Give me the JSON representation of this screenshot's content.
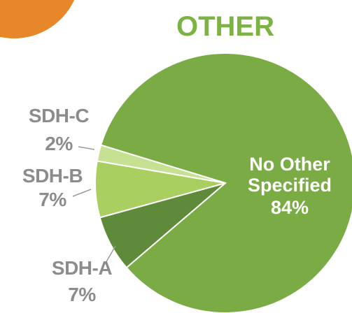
{
  "chart_data": {
    "type": "pie",
    "title": "OTHER",
    "categories": [
      "No Other Specified",
      "SDH-A",
      "SDH-B",
      "SDH-C"
    ],
    "values": [
      84,
      7,
      7,
      2
    ],
    "value_labels": [
      "84%",
      "7%",
      "7%",
      "2%"
    ],
    "colors": [
      "#7aab45",
      "#5f8a39",
      "#a9cf60",
      "#c6e192"
    ]
  }
}
